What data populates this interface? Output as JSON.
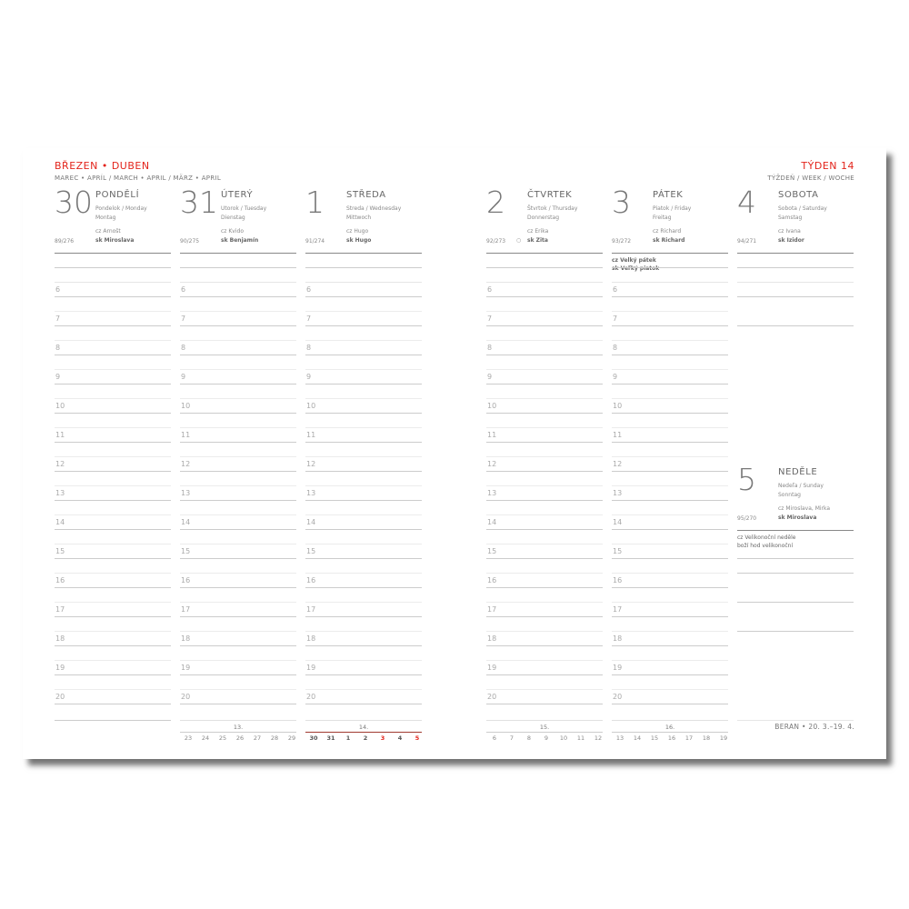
{
  "header": {
    "title": "BŘEZEN • DUBEN",
    "subtitle": "MAREC • APRÍL / MARCH • APRIL / MÄRZ • APRIL",
    "week_title": "TÝDEN 14",
    "week_subtitle": "TÝŽDEŇ / WEEK / WOCHE"
  },
  "colors": {
    "accent": "#e3241b",
    "text": "#666666"
  },
  "days": [
    {
      "num": "30",
      "name": "PONDĚLÍ",
      "alt1": "Pondelok / Monday",
      "alt2": "Montag",
      "cz": "cz Arnošt",
      "sk": "sk Miroslava",
      "count": "89/276",
      "red": false
    },
    {
      "num": "31",
      "name": "ÚTERÝ",
      "alt1": "Utorok / Tuesday",
      "alt2": "Dienstag",
      "cz": "cz Kvido",
      "sk": "sk Benjamín",
      "count": "90/275",
      "red": false
    },
    {
      "num": "1",
      "name": "STŘEDA",
      "alt1": "Streda / Wednesday",
      "alt2": "Mittwoch",
      "cz": "cz Hugo",
      "sk": "sk Hugo",
      "count": "91/274",
      "red": false
    },
    {
      "num": "2",
      "name": "ČTVRTEK",
      "alt1": "Štvrtok / Thursday",
      "alt2": "Donnerstag",
      "cz": "cz Erika",
      "sk": "sk Zita",
      "count": "92/273",
      "moon": "○",
      "red": false
    },
    {
      "num": "3",
      "name": "PÁTEK",
      "alt1": "Piatok / Friday",
      "alt2": "Freitag",
      "cz": "cz Richard",
      "sk": "sk Richard",
      "count": "93/272",
      "red": true,
      "holidays": [
        "cz Velký pátek",
        "sk Veľký piatok"
      ]
    },
    {
      "num": "4",
      "name": "SOBOTA",
      "alt1": "Sobota / Saturday",
      "alt2": "Samstag",
      "cz": "cz Ivana",
      "sk": "sk Izidor",
      "count": "94/271",
      "red": false
    },
    {
      "num": "5",
      "name": "NEDĚLE",
      "alt1": "Nedeľa / Sunday",
      "alt2": "Sonntag",
      "cz": "cz Miroslava, Mirka",
      "sk": "sk Miroslava",
      "count": "95/270",
      "red": true,
      "holidays": [
        "cz Velikonoční neděle",
        "   boží hod velikonoční"
      ]
    }
  ],
  "hours": [
    "6",
    "7",
    "8",
    "9",
    "10",
    "11",
    "12",
    "13",
    "14",
    "15",
    "16",
    "17",
    "18",
    "19",
    "20"
  ],
  "mini_calendars": [
    {
      "week": "13.",
      "days": [
        "23",
        "24",
        "25",
        "26",
        "27",
        "28",
        "29"
      ],
      "red": [
        6
      ]
    },
    {
      "week": "14.",
      "days": [
        "30",
        "31",
        "1",
        "2",
        "3",
        "4",
        "5"
      ],
      "red": [
        4,
        6
      ]
    },
    {
      "week": "15.",
      "days": [
        "6",
        "7",
        "8",
        "9",
        "10",
        "11",
        "12"
      ],
      "red": [
        0,
        6
      ]
    },
    {
      "week": "16.",
      "days": [
        "13",
        "14",
        "15",
        "16",
        "17",
        "18",
        "19"
      ],
      "red": [
        6
      ]
    }
  ],
  "footer": "BERAN • 20. 3.–19. 4."
}
